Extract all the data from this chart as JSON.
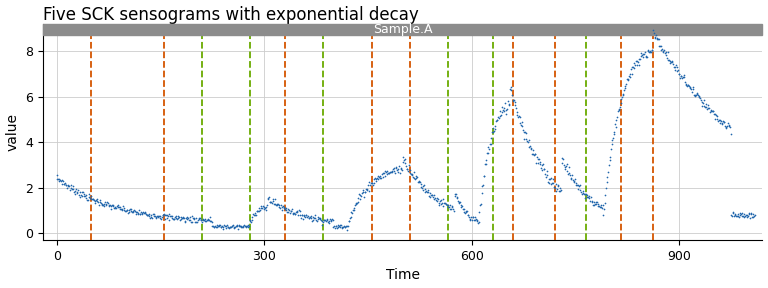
{
  "title": "Five SCK sensograms with exponential decay",
  "xlabel": "Time",
  "ylabel": "value",
  "subtitle": "Sample.A",
  "subtitle_bg": "#8c8c8c",
  "dot_color": "#2166ac",
  "ylim": [
    -0.3,
    9.2
  ],
  "xlim": [
    -20,
    1020
  ],
  "orange_vlines": [
    50,
    155,
    330,
    455,
    510,
    660,
    720,
    815,
    862
  ],
  "green_vlines": [
    210,
    280,
    385,
    565,
    630,
    765
  ],
  "grid_color": "#cccccc",
  "bg_color": "#ffffff",
  "title_fontsize": 12,
  "axis_fontsize": 10,
  "subtitle_fontsize": 9
}
